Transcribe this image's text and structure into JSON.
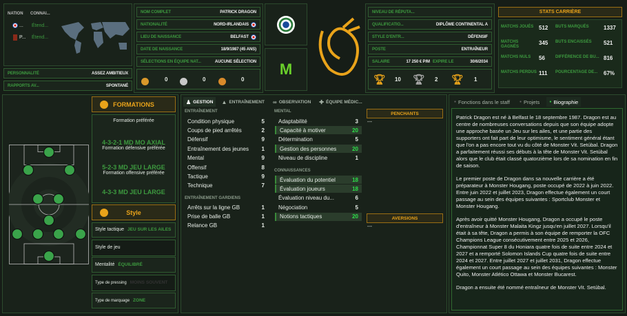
{
  "nation_panel": {
    "headers": [
      "NATION",
      "CONNAI..."
    ],
    "rows": [
      {
        "name": "...",
        "level": "Étend..."
      },
      {
        "name": "P...",
        "level": "Étend..."
      }
    ]
  },
  "personality": {
    "label": "PERSONNALITÉ",
    "value": "ASSEZ AMBITIEUX"
  },
  "media": {
    "label": "RAPPORTS AV...",
    "value": "SPONTANÉ"
  },
  "info": [
    {
      "label": "NOM COMPLET",
      "value": "PATRICK DRAGON"
    },
    {
      "label": "NATIONALITÉ",
      "value": "NORD-IRLANDAIS"
    },
    {
      "label": "LIEU DE NAISSANCE",
      "value": "BELFAST"
    },
    {
      "label": "DATE DE NAISSANCE",
      "value": "18/9/1987 (45 ANS)"
    },
    {
      "label": "SÉLECTIONS EN ÉQUIPE NAT...",
      "value": "AUCUNE SÉLECTION"
    }
  ],
  "medals": [
    "0",
    "0",
    "0"
  ],
  "info2": [
    {
      "label": "NIVEAU DE RÉPUTA...",
      "value": ""
    },
    {
      "label": "QUALIFICATIO...",
      "value": "DIPLÔME CONTINENTAL A"
    },
    {
      "label": "STYLE D'ENTR...",
      "value": "DÉFENSIF"
    },
    {
      "label": "POSTE",
      "value": "ENTRAÎNEUR"
    }
  ],
  "reputation_stars": 2.5,
  "salary": {
    "label": "SALAIRE",
    "value": "17 250 € P/M",
    "expires_label": "EXPIRE LE",
    "expires": "30/6/2034"
  },
  "trophies": [
    "10",
    "2",
    "1"
  ],
  "career": {
    "title": "STATS CARRIÈRE",
    "left": [
      {
        "label": "MATCHS JOUÉS",
        "value": "512"
      },
      {
        "label": "MATCHS GAGNÉS",
        "value": "345"
      },
      {
        "label": "MATCHS NULS",
        "value": "56"
      },
      {
        "label": "MATCHS PERDUS",
        "value": "111"
      }
    ],
    "right": [
      {
        "label": "BUTS MARQUÉS",
        "value": "1337"
      },
      {
        "label": "BUTS ENCAISSÉS",
        "value": "521"
      },
      {
        "label": "DIFFÉRENCE DE BU...",
        "value": "816"
      },
      {
        "label": "POURCENTAGE DE...",
        "value": "67%"
      }
    ]
  },
  "formations": {
    "title": "FORMATIONS",
    "preferred_label": "Formation préférée",
    "preferred": "4-3-2-1 MD MO AXIAL",
    "def_label": "Formation défensive préférée",
    "def": "5-2-3 MD JEU LARGE",
    "off_label": "Formation offensive préférée",
    "off": "4-3-3 MD JEU LARGE"
  },
  "style": {
    "title": "Style",
    "rows": [
      {
        "label": "Style tactique",
        "value": "JEU SUR LES AILES"
      },
      {
        "label": "Style de jeu",
        "value": ""
      },
      {
        "label": "Mentalité",
        "value": "ÉQUILIBRÉ"
      },
      {
        "label": "Type de pressing",
        "value": "MOINS SOUVENT"
      },
      {
        "label": "Type de marquage",
        "value": "ZONE"
      }
    ]
  },
  "tabs": [
    "GESTION",
    "ENTRAÎNEMENT",
    "OBSERVATION",
    "ÉQUIPE MÉDIC..."
  ],
  "training": {
    "title": "ENTRAÎNEMENT",
    "items": [
      [
        "Condition physique",
        "5"
      ],
      [
        "Coups de pied arrêtés",
        "2"
      ],
      [
        "Défensif",
        "9"
      ],
      [
        "Entraînement des jeunes",
        "1"
      ],
      [
        "Mental",
        "9"
      ],
      [
        "Offensif",
        "8"
      ],
      [
        "Tactique",
        "9"
      ],
      [
        "Technique",
        "7"
      ]
    ]
  },
  "gk": {
    "title": "ENTRAÎNEMENT GARDIENS",
    "items": [
      [
        "Arrêts sur la ligne GB",
        "1"
      ],
      [
        "Prise de balle GB",
        "1"
      ],
      [
        "Relance GB",
        "1"
      ]
    ]
  },
  "mental": {
    "title": "MENTAL",
    "items": [
      [
        "Adaptabilité",
        "3",
        false
      ],
      [
        "Capacité à motiver",
        "20",
        true
      ],
      [
        "Détermination",
        "5",
        false
      ],
      [
        "Gestion des personnes",
        "20",
        true
      ],
      [
        "Niveau de discipline",
        "1",
        false
      ]
    ]
  },
  "knowledge": {
    "title": "CONNAISSANCES",
    "items": [
      [
        "Évaluation du potentiel",
        "18",
        true
      ],
      [
        "Évaluation joueurs",
        "18",
        true
      ],
      [
        "Évaluation niveau du...",
        "6",
        false
      ],
      [
        "Négociation",
        "5",
        false
      ],
      [
        "Notions tactiques",
        "20",
        true
      ]
    ]
  },
  "likes": {
    "title": "PENCHANTS",
    "value": "---"
  },
  "dislikes": {
    "title": "AVERSIONS",
    "value": "---"
  },
  "bio_tabs": [
    "Fonctions dans le staff",
    "Projets",
    "Biographie"
  ],
  "bio": [
    "Patrick Dragon est né à Belfast le 18 septembre 1987. Dragon est au centre de nombreuses conversations depuis que son équipe adopte une approche basée un Jeu sur les ailes, et une partie des supporters ont fait part de leur optimisme, le sentiment général étant que l'on a pas encore tout vu du côté de Monster Vit. Setúbal. Dragon a parfaitement réussi ses débuts à la tête de Monster Vit. Setúbal alors que le club était classé quatorzième lors de sa nomination en fin de saison.",
    "Le premier poste de Dragon dans sa nouvelle carrière a été préparateur à Monster Hougang, poste occupé de 2022 à juin 2022. Entre juin 2022 et juillet 2023, Dragon effectue également un court passage au sein des équipes suivantes : Sportclub Monster et Monster Hougang.",
    "Après avoir quitté Monster Hougang, Dragon a occupé le poste d'entraîneur à Monster Malaita Kingz jusqu'en juillet 2027. Lorsqu'il était à sa tête, Dragon a permis à son équipe de remporter la OFC Champions League consécutivement entre 2025 et 2026, Championnat Super 8 du Honiara quatre fois de suite entre 2024 et 2027 et a remporté Solomon Islands Cup quatre fois de suite entre 2024 et 2027. Entre juillet 2027 et juillet 2031, Dragon effectue également un court passage au sein des équipes suivantes : Monster Quito, Monster Atlético Ottawa et Monster Bucarest.",
    "Dragon a ensuite été nommé entraîneur de Monster Vit. Setúbal."
  ],
  "colors": {
    "accent": "#e9a31a",
    "label_green": "#3d9a3f",
    "highlight": "#2de04a",
    "player": "#3aa34a"
  }
}
